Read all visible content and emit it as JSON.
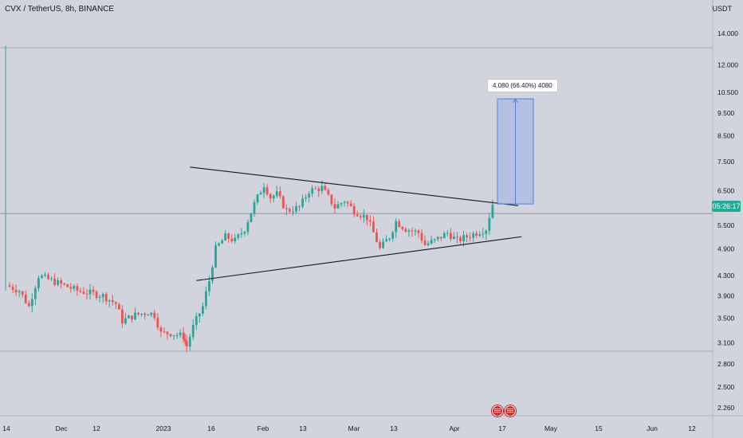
{
  "header": {
    "symbol_line": "CVX / TetherUS, 8h, BINANCE",
    "currency": "USDT"
  },
  "price_badge": "05:26:17",
  "measure_label": "4.080 (66.40%) 4080",
  "colors": {
    "background": "#d1d4dc",
    "up": "#26a69a",
    "down": "#ef5350",
    "measure_fill": "#aab9e3",
    "measure_line": "#5b7fd6",
    "trendline": "#131722",
    "badge": "#22ab94"
  },
  "events": [
    "us-flag-icon",
    "us-flag-icon"
  ],
  "chart_data": {
    "type": "candlestick",
    "y_scale": "log",
    "ylim": [
      2.1,
      16.0
    ],
    "y_ticks": [
      "14.000",
      "12.000",
      "10.500",
      "9.500",
      "8.500",
      "7.500",
      "6.500",
      "5.500",
      "4.900",
      "4.300",
      "3.900",
      "3.500",
      "3.100",
      "2.800",
      "2.500",
      "2.260"
    ],
    "x_ticks": [
      "14",
      "Dec",
      "12",
      "2023",
      "16",
      "Feb",
      "13",
      "Mar",
      "13",
      "Apr",
      "17",
      "May",
      "15",
      "Jun",
      "12"
    ],
    "current_price": 6.1,
    "price_path": [
      {
        "d": "Nov 14",
        "p": 4.1
      },
      {
        "d": "Nov 18",
        "p": 4.0
      },
      {
        "d": "Nov 21",
        "p": 3.7
      },
      {
        "d": "Nov 24",
        "p": 4.3
      },
      {
        "d": "Nov 28",
        "p": 4.2
      },
      {
        "d": "Dec 2",
        "p": 4.1
      },
      {
        "d": "Dec 6",
        "p": 4.0
      },
      {
        "d": "Dec 10",
        "p": 3.95
      },
      {
        "d": "Dec 14",
        "p": 3.9
      },
      {
        "d": "Dec 18",
        "p": 3.75
      },
      {
        "d": "Dec 20",
        "p": 3.45
      },
      {
        "d": "Dec 24",
        "p": 3.55
      },
      {
        "d": "Dec 28",
        "p": 3.6
      },
      {
        "d": "Dec 30",
        "p": 3.55
      },
      {
        "d": "Jan 1",
        "p": 3.25
      },
      {
        "d": "Jan 4",
        "p": 3.25
      },
      {
        "d": "Jan 8",
        "p": 3.2
      },
      {
        "d": "Jan 9",
        "p": 3.05
      },
      {
        "d": "Jan 11",
        "p": 3.35
      },
      {
        "d": "Jan 14",
        "p": 3.7
      },
      {
        "d": "Jan 16",
        "p": 4.2
      },
      {
        "d": "Jan 18",
        "p": 4.9
      },
      {
        "d": "Jan 21",
        "p": 5.2
      },
      {
        "d": "Jan 24",
        "p": 5.1
      },
      {
        "d": "Jan 27",
        "p": 5.4
      },
      {
        "d": "Jan 30",
        "p": 6.1
      },
      {
        "d": "Feb 2",
        "p": 6.7
      },
      {
        "d": "Feb 4",
        "p": 6.3
      },
      {
        "d": "Feb 6",
        "p": 6.4
      },
      {
        "d": "Feb 9",
        "p": 5.9
      },
      {
        "d": "Feb 13",
        "p": 6.0
      },
      {
        "d": "Feb 16",
        "p": 6.5
      },
      {
        "d": "Feb 20",
        "p": 6.6
      },
      {
        "d": "Feb 24",
        "p": 6.0
      },
      {
        "d": "Feb 27",
        "p": 6.2
      },
      {
        "d": "Mar 2",
        "p": 5.9
      },
      {
        "d": "Mar 6",
        "p": 5.7
      },
      {
        "d": "Mar 10",
        "p": 4.9
      },
      {
        "d": "Mar 13",
        "p": 5.2
      },
      {
        "d": "Mar 15",
        "p": 5.6
      },
      {
        "d": "Mar 18",
        "p": 5.4
      },
      {
        "d": "Mar 22",
        "p": 5.3
      },
      {
        "d": "Mar 24",
        "p": 5.0
      },
      {
        "d": "Mar 27",
        "p": 5.1
      },
      {
        "d": "Mar 31",
        "p": 5.3
      },
      {
        "d": "Apr 3",
        "p": 5.1
      },
      {
        "d": "Apr 6",
        "p": 5.2
      },
      {
        "d": "Apr 9",
        "p": 5.3
      },
      {
        "d": "Apr 12",
        "p": 5.4
      },
      {
        "d": "Apr 14",
        "p": 6.1
      }
    ],
    "trendlines": [
      {
        "name": "upper",
        "from": {
          "d": "Jan 10",
          "p": 7.3
        },
        "to": {
          "d": "Apr 22",
          "p": 6.05
        }
      },
      {
        "name": "lower",
        "from": {
          "d": "Jan 12",
          "p": 4.2
        },
        "to": {
          "d": "Apr 23",
          "p": 5.2
        }
      }
    ],
    "measure": {
      "from_price": 6.1,
      "to_price": 10.18,
      "change": 4.08,
      "percent": 66.4,
      "ticks": 4080
    },
    "grid": false
  }
}
